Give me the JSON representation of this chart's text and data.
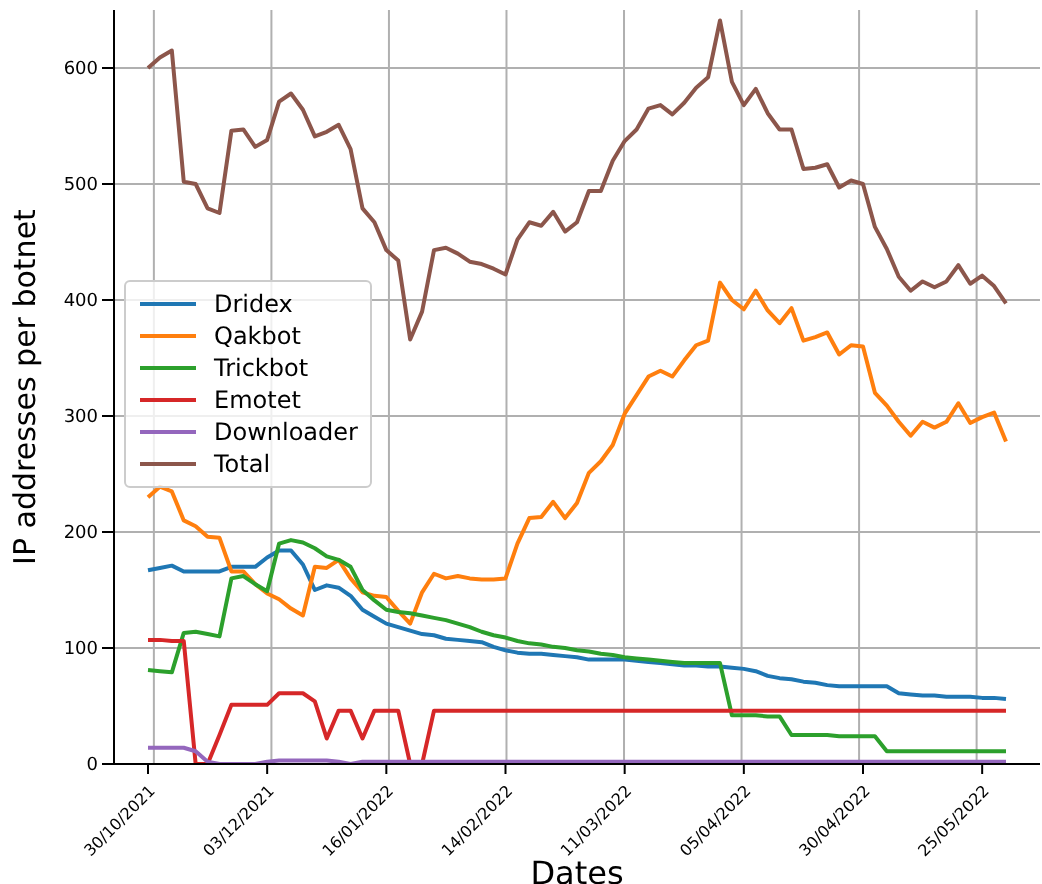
{
  "chart_data": {
    "type": "line",
    "xlabel": "Dates",
    "ylabel": "IP addresses per botnet",
    "categories": [
      "30/10/2021",
      null,
      null,
      null,
      null,
      null,
      null,
      null,
      null,
      null,
      "03/12/2021",
      null,
      null,
      null,
      null,
      null,
      null,
      null,
      null,
      null,
      "16/01/2022",
      null,
      null,
      null,
      null,
      null,
      null,
      null,
      null,
      null,
      "14/02/2022",
      null,
      null,
      null,
      null,
      null,
      null,
      null,
      null,
      null,
      "11/03/2022",
      null,
      null,
      null,
      null,
      null,
      null,
      null,
      null,
      null,
      "05/04/2022",
      null,
      null,
      null,
      null,
      null,
      null,
      null,
      null,
      null,
      "30/04/2022",
      null,
      null,
      null,
      null,
      null,
      null,
      null,
      null,
      null,
      "25/05/2022",
      null,
      null
    ],
    "ylim": [
      0,
      650
    ],
    "yticks": [
      0,
      100,
      200,
      300,
      400,
      500,
      600
    ],
    "grid": true,
    "legend": "center left",
    "marker": "none",
    "line_style": "solid",
    "series": [
      {
        "name": "Dridex",
        "color": "#1f77b4",
        "values": [
          167,
          169,
          171,
          166,
          166,
          166,
          166,
          170,
          170,
          170,
          178,
          184,
          184,
          172,
          150,
          154,
          152,
          145,
          133,
          127,
          121,
          118,
          115,
          112,
          111,
          108,
          107,
          106,
          105,
          101,
          98,
          96,
          95,
          95,
          94,
          93,
          92,
          90,
          90,
          90,
          90,
          89,
          88,
          87,
          86,
          85,
          85,
          84,
          84,
          83,
          82,
          80,
          76,
          74,
          73,
          71,
          70,
          68,
          67,
          67,
          67,
          67,
          67,
          61,
          60,
          59,
          59,
          58,
          58,
          58,
          57,
          57,
          56
        ]
      },
      {
        "name": "Qakbot",
        "color": "#ff7f0e",
        "values": [
          230,
          239,
          235,
          210,
          205,
          196,
          195,
          166,
          166,
          155,
          147,
          142,
          134,
          128,
          170,
          169,
          176,
          160,
          148,
          145,
          144,
          132,
          121,
          148,
          164,
          160,
          162,
          160,
          159,
          159,
          160,
          190,
          212,
          213,
          226,
          212,
          225,
          251,
          261,
          275,
          302,
          318,
          334,
          339,
          334,
          348,
          361,
          365,
          415,
          400,
          392,
          408,
          391,
          380,
          393,
          365,
          368,
          372,
          353,
          361,
          360,
          320,
          309,
          295,
          283,
          295,
          290,
          295,
          311,
          294,
          299,
          303,
          278
        ]
      },
      {
        "name": "Trickbot",
        "color": "#2ca02c",
        "values": [
          81,
          80,
          79,
          113,
          114,
          112,
          110,
          160,
          162,
          155,
          149,
          190,
          193,
          191,
          186,
          179,
          176,
          170,
          150,
          141,
          133,
          131,
          130,
          128,
          126,
          124,
          121,
          118,
          114,
          111,
          109,
          106,
          104,
          103,
          101,
          100,
          98,
          97,
          95,
          94,
          92,
          91,
          90,
          89,
          88,
          87,
          87,
          87,
          87,
          42,
          42,
          42,
          41,
          41,
          25,
          25,
          25,
          25,
          24,
          24,
          24,
          24,
          11,
          11,
          11,
          11,
          11,
          11,
          11,
          11,
          11,
          11,
          11
        ]
      },
      {
        "name": "Emotet",
        "color": "#d62728",
        "values": [
          107,
          107,
          106,
          106,
          0,
          0,
          25,
          51,
          51,
          51,
          51,
          61,
          61,
          61,
          54,
          22,
          46,
          46,
          22,
          46,
          46,
          46,
          0,
          0,
          46,
          46,
          46,
          46,
          46,
          46,
          46,
          46,
          46,
          46,
          46,
          46,
          46,
          46,
          46,
          46,
          46,
          46,
          46,
          46,
          46,
          46,
          46,
          46,
          46,
          46,
          46,
          46,
          46,
          46,
          46,
          46,
          46,
          46,
          46,
          46,
          46,
          46,
          46,
          46,
          46,
          46,
          46,
          46,
          46,
          46,
          46,
          46,
          46
        ]
      },
      {
        "name": "Downloader",
        "color": "#9467bd",
        "values": [
          14,
          14,
          14,
          14,
          11,
          2,
          0,
          0,
          0,
          0,
          2,
          3,
          3,
          3,
          3,
          3,
          2,
          0,
          2,
          2,
          2,
          2,
          2,
          2,
          2,
          2,
          2,
          2,
          2,
          2,
          2,
          2,
          2,
          2,
          2,
          2,
          2,
          2,
          2,
          2,
          2,
          2,
          2,
          2,
          2,
          2,
          2,
          2,
          2,
          2,
          2,
          2,
          2,
          2,
          2,
          2,
          2,
          2,
          2,
          2,
          2,
          2,
          2,
          2,
          2,
          2,
          2,
          2,
          2,
          2,
          2,
          2,
          2
        ]
      },
      {
        "name": "Total",
        "color": "#8c564b",
        "values": [
          600,
          609,
          615,
          502,
          500,
          479,
          475,
          546,
          547,
          532,
          538,
          571,
          578,
          564,
          541,
          545,
          551,
          530,
          479,
          467,
          443,
          434,
          366,
          390,
          443,
          445,
          440,
          433,
          431,
          427,
          422,
          452,
          467,
          464,
          476,
          459,
          467,
          494,
          494,
          520,
          537,
          547,
          565,
          568,
          560,
          570,
          583,
          592,
          641,
          588,
          568,
          582,
          561,
          547,
          547,
          513,
          514,
          517,
          497,
          503,
          500,
          463,
          444,
          420,
          408,
          416,
          411,
          416,
          430,
          414,
          421,
          412,
          397
        ]
      }
    ]
  }
}
